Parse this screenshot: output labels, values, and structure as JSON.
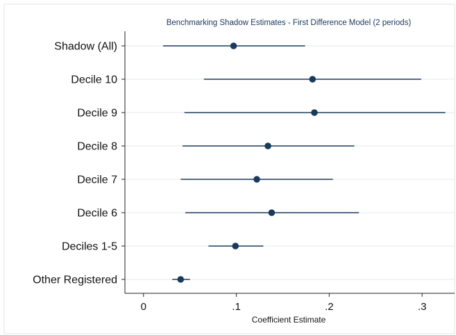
{
  "chart_data": {
    "type": "scatter",
    "subtype": "coefficient-plot-with-confidence-intervals",
    "title": "Benchmarking Shadow Estimates - First Difference Model (2 periods)",
    "xlabel": "Coefficient Estimate",
    "ylabel": "",
    "xlim": [
      -0.02,
      0.335
    ],
    "xticks": [
      {
        "value": 0,
        "label": "0"
      },
      {
        "value": 0.1,
        "label": ".1"
      },
      {
        "value": 0.2,
        "label": ".2"
      },
      {
        "value": 0.3,
        "label": ".3"
      }
    ],
    "grid": true,
    "legend": "none",
    "colors": {
      "marker": "#1a3a5c",
      "ci_line": "#1a3a5c",
      "title": "#1a3a5c",
      "grid": "#e6e9ed"
    },
    "categories": [
      "Shadow (All)",
      "Decile 10",
      "Decile 9",
      "Decile 8",
      "Decile 7",
      "Decile 6",
      "Deciles 1-5",
      "Other Registered"
    ],
    "points": [
      {
        "label": "Shadow (All)",
        "estimate": 0.097,
        "ci_low": 0.021,
        "ci_high": 0.174
      },
      {
        "label": "Decile 10",
        "estimate": 0.182,
        "ci_low": 0.065,
        "ci_high": 0.299
      },
      {
        "label": "Decile 9",
        "estimate": 0.184,
        "ci_low": 0.044,
        "ci_high": 0.325
      },
      {
        "label": "Decile 8",
        "estimate": 0.134,
        "ci_low": 0.042,
        "ci_high": 0.227
      },
      {
        "label": "Decile 7",
        "estimate": 0.122,
        "ci_low": 0.04,
        "ci_high": 0.204
      },
      {
        "label": "Decile 6",
        "estimate": 0.138,
        "ci_low": 0.045,
        "ci_high": 0.232
      },
      {
        "label": "Deciles 1-5",
        "estimate": 0.099,
        "ci_low": 0.07,
        "ci_high": 0.129
      },
      {
        "label": "Other Registered",
        "estimate": 0.04,
        "ci_low": 0.031,
        "ci_high": 0.05
      }
    ]
  }
}
